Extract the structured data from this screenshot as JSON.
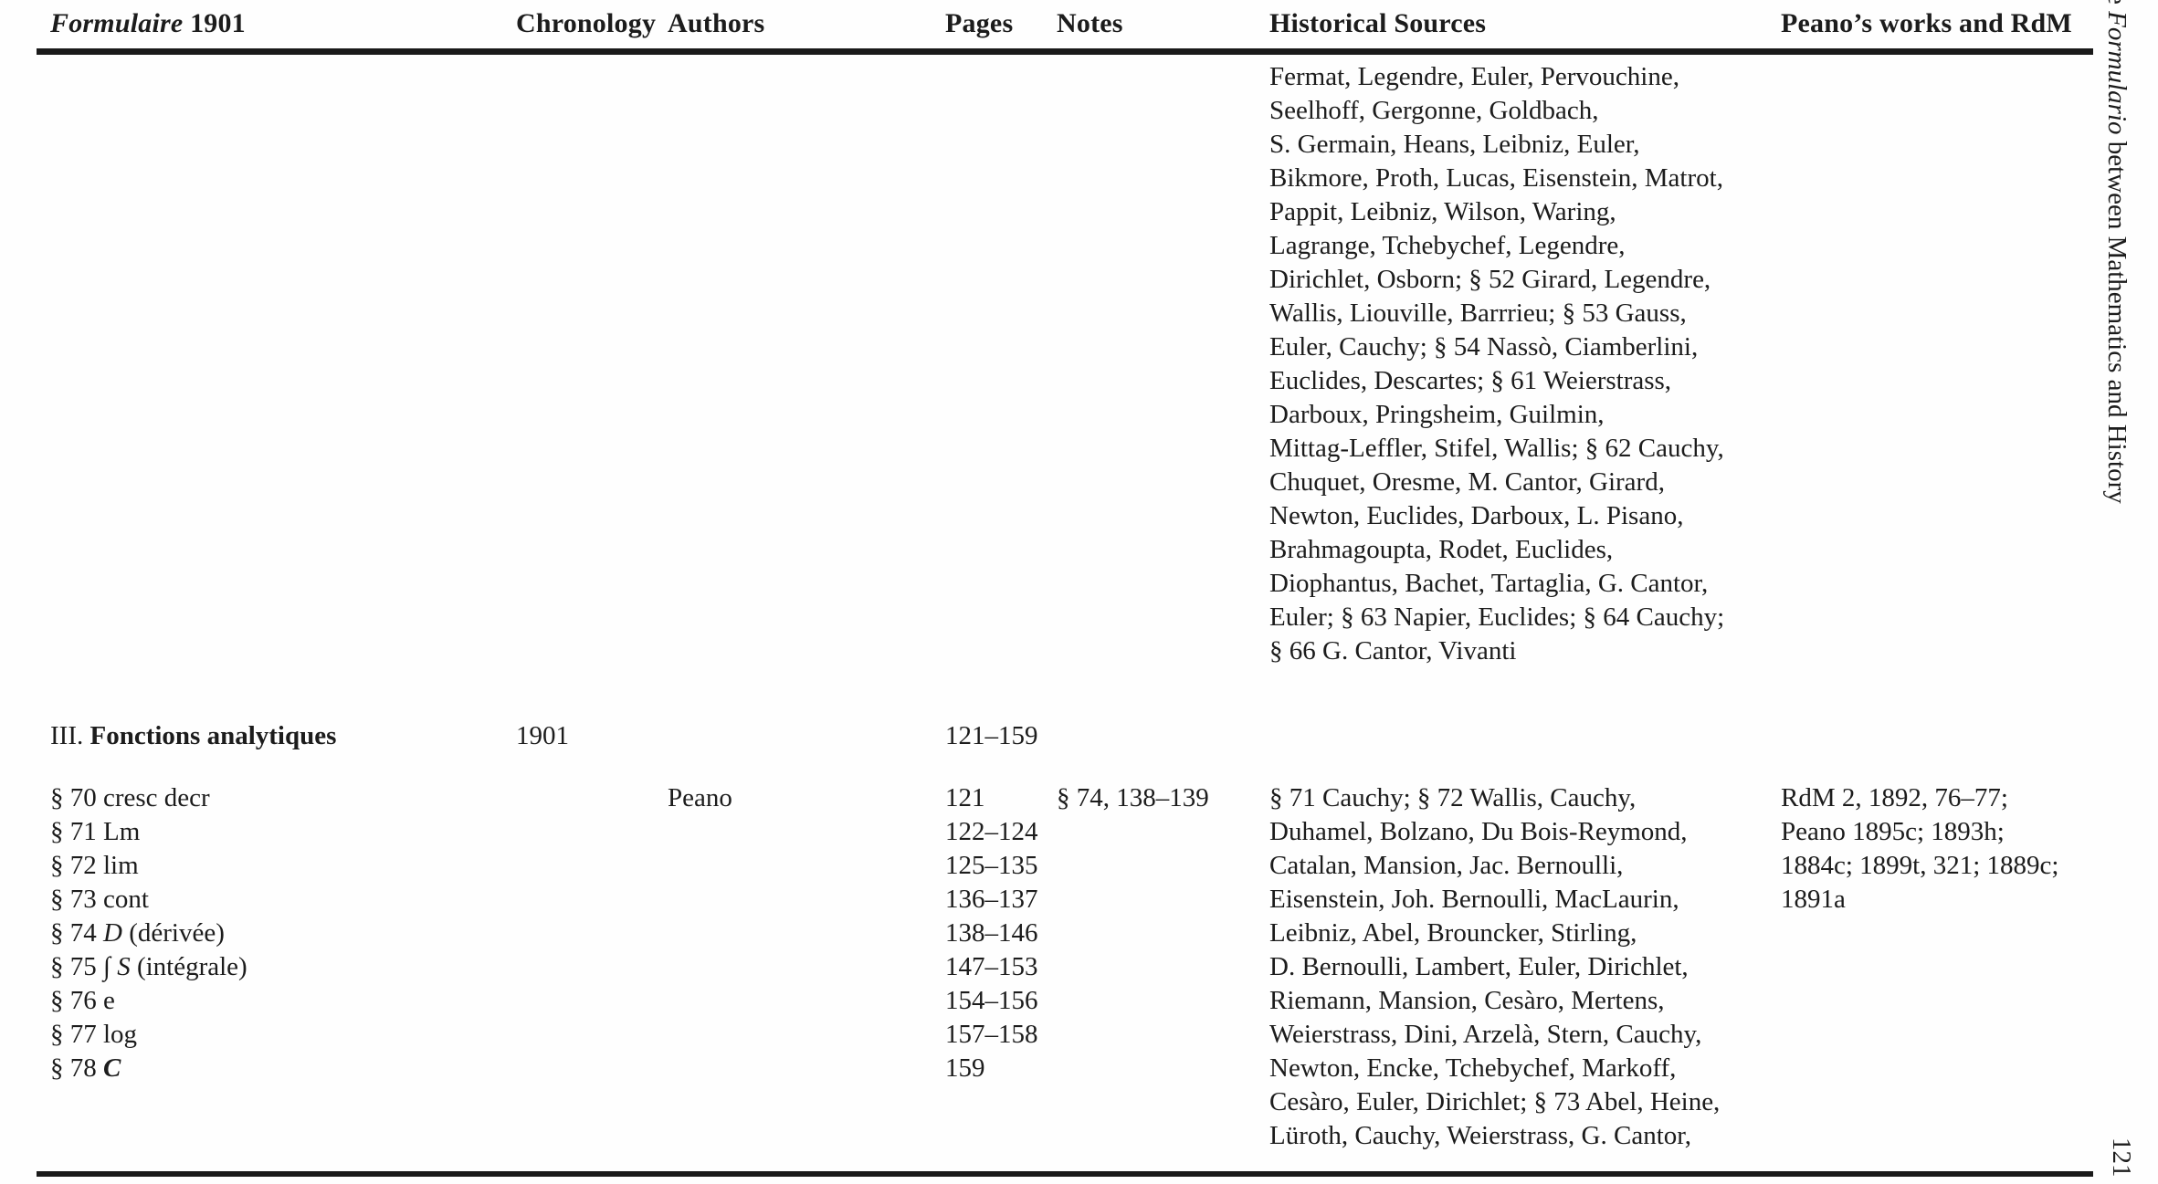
{
  "header": {
    "formulaire_italic": "Formulaire",
    "formulaire_year": " 1901",
    "chronology": "Chronology",
    "authors": "Authors",
    "pages": "Pages",
    "notes": "Notes",
    "historical_sources": "Historical Sources",
    "peano_works": "Peano’s works and RdM"
  },
  "body": {
    "group1": {
      "historical_sources": [
        "Fermat, Legendre, Euler, Pervouchine,",
        "Seelhoff, Gergonne, Goldbach,",
        "S. Germain, Heans, Leibniz, Euler,",
        "Bikmore, Proth, Lucas, Eisenstein, Matrot,",
        "Pappit, Leibniz, Wilson, Waring,",
        "Lagrange, Tchebychef, Legendre,",
        "Dirichlet, Osborn; § 52 Girard, Legendre,",
        "Wallis, Liouville, Barrrieu; § 53 Gauss,",
        "Euler, Cauchy; § 54 Nassò, Ciamberlini,",
        "Euclides, Descartes; § 61 Weierstrass,",
        "Darboux, Pringsheim, Guilmin,",
        "Mittag-Leffler, Stifel, Wallis; § 62 Cauchy,",
        "Chuquet, Oresme, M. Cantor, Girard,",
        "Newton, Euclides, Darboux, L. Pisano,",
        "Brahmagoupta, Rodet, Euclides,",
        "Diophantus, Bachet, Tartaglia, G. Cantor,",
        "Euler; § 63 Napier, Euclides; § 64 Cauchy;",
        "§ 66 G. Cantor, Vivanti"
      ]
    },
    "section": {
      "numeral": "III. ",
      "title": "Fonctions analytiques",
      "chronology": "1901",
      "pages": "121–159"
    },
    "group3": {
      "formulaire_items": [
        {
          "prefix": "§ 70 cresc decr"
        },
        {
          "prefix": "§ 71 Lm"
        },
        {
          "prefix": "§ 72 lim"
        },
        {
          "prefix": "§ 73 cont"
        },
        {
          "prefix": "§ 74 ",
          "math": "D",
          "suffix": " (dérivée)"
        },
        {
          "prefix": "§ 75 ",
          "math": "∫ S",
          "suffix": " (intégrale)"
        },
        {
          "prefix": "§ 76 e"
        },
        {
          "prefix": "§ 77 log"
        },
        {
          "prefix": "§ 78 ",
          "math": "C",
          "math_bold": true
        }
      ],
      "authors": "Peano",
      "pages": [
        "121",
        "122–124",
        "125–135",
        "136–137",
        "138–146",
        "147–153",
        "154–156",
        "157–158",
        "159"
      ],
      "notes": "§ 74, 138–139",
      "historical_sources": [
        "§ 71 Cauchy; § 72 Wallis, Cauchy,",
        "Duhamel, Bolzano, Du Bois-Reymond,",
        "Catalan, Mansion, Jac. Bernoulli,",
        "Eisenstein, Joh. Bernoulli, MacLaurin,",
        "Leibniz, Abel, Brouncker, Stirling,",
        "D. Bernoulli, Lambert, Euler, Dirichlet,",
        "Riemann, Mansion, Cesàro, Mertens,",
        "Weierstrass, Dini, Arzelà, Stern, Cauchy,",
        "Newton, Encke, Tchebychef, Markoff,",
        "Cesàro, Euler, Dirichlet; § 73 Abel, Heine,",
        "Lüroth, Cauchy, Weierstrass, G. Cantor,"
      ],
      "peano_works": [
        "RdM 2, 1892, 76–77;",
        "Peano 1895c; 1893h;",
        "1884c; 1899t, 321; 1889c;",
        "1891a"
      ]
    }
  },
  "margin": {
    "running_title_prefix": "e ",
    "running_title_emphasis": "Formulario",
    "running_title_suffix": " between Mathematics and History",
    "page_number": "121"
  }
}
